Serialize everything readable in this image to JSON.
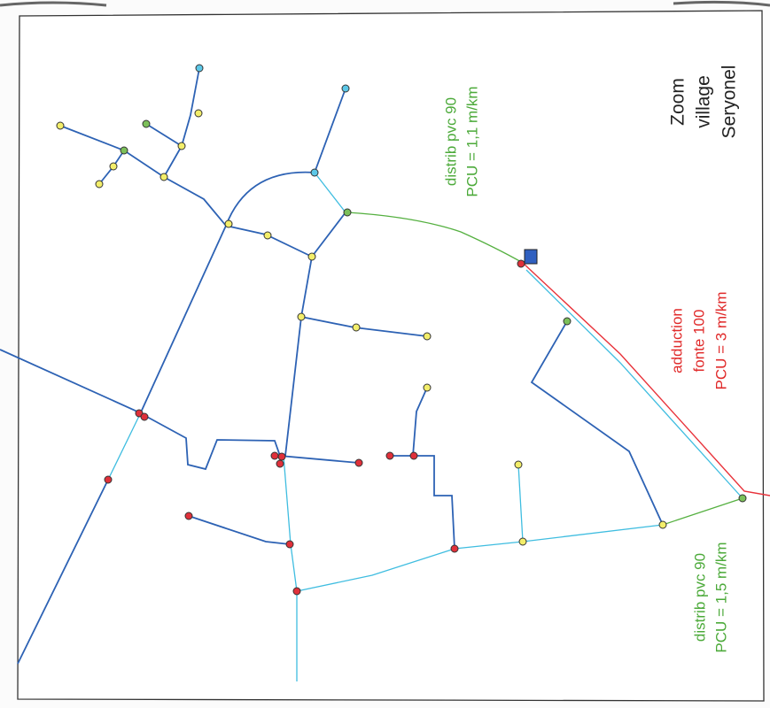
{
  "labels": [
    {
      "lines": [
        "Zoom",
        "village",
        "Seryonel"
      ]
    },
    {
      "lines": [
        "distrib pvc 90",
        "PCU = 1,1 m/km"
      ]
    },
    {
      "lines": [
        "adduction",
        "fonte 100",
        "PCU = 3 m/km"
      ]
    },
    {
      "lines": [
        "distrib pvc 90",
        "PCU = 1,5 m/km"
      ]
    }
  ]
}
